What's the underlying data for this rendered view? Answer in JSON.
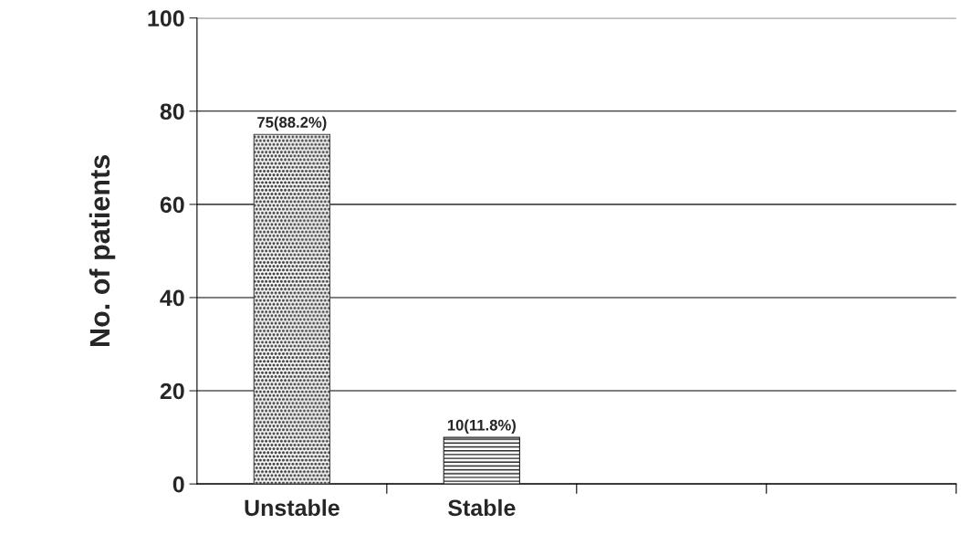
{
  "chart_data": {
    "type": "bar",
    "ylabel": "No. of patients",
    "categories": [
      "Unstable",
      "Stable",
      null,
      null
    ],
    "values": [
      75,
      10,
      null,
      null
    ],
    "colors": [
      "#444444",
      "#222222",
      null,
      null
    ],
    "value_labels": [
      "75(88.2%)",
      "10(11.8%)",
      null,
      null
    ],
    "ylim": [
      0,
      100
    ],
    "yticks": [
      0,
      20,
      40,
      60,
      80,
      100
    ],
    "grid": "y",
    "legend": false
  }
}
